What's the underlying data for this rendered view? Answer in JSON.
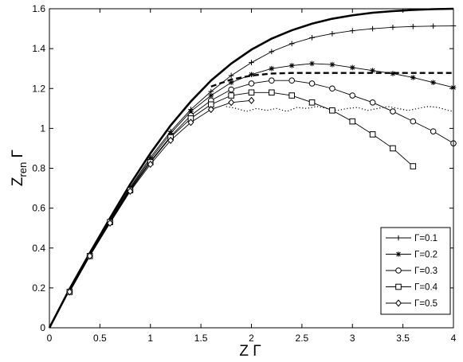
{
  "chart_data": {
    "type": "line",
    "title": "",
    "xlabel": "Z Γ",
    "ylabel": {
      "main": "Z",
      "sub": "ren",
      "suffix": " Γ"
    },
    "xlim": [
      0,
      4
    ],
    "ylim": [
      0,
      1.6
    ],
    "x_ticks": [
      "0",
      "0.5",
      "1",
      "1.5",
      "2",
      "2.5",
      "3",
      "3.5",
      "4"
    ],
    "y_ticks": [
      "0",
      "0.2",
      "0.4",
      "0.6",
      "0.8",
      "1",
      "1.2",
      "1.4",
      "1.6"
    ],
    "grid": false,
    "legend_position": "bottom-right",
    "series": [
      {
        "name": "Γ=0.1",
        "marker": "plus",
        "x": [
          0.2,
          0.4,
          0.6,
          0.8,
          1.0,
          1.2,
          1.4,
          1.6,
          1.8,
          2.0,
          2.2,
          2.4,
          2.6,
          2.8,
          3.0,
          3.2,
          3.4,
          3.6,
          3.8,
          4.0
        ],
        "values": [
          0.185,
          0.365,
          0.54,
          0.705,
          0.855,
          0.985,
          1.095,
          1.185,
          1.265,
          1.33,
          1.385,
          1.425,
          1.455,
          1.475,
          1.49,
          1.5,
          1.507,
          1.511,
          1.513,
          1.514
        ]
      },
      {
        "name": "Γ=0.2",
        "marker": "star",
        "x": [
          0.2,
          0.4,
          0.6,
          0.8,
          1.0,
          1.2,
          1.4,
          1.6,
          1.8,
          2.0,
          2.2,
          2.4,
          2.6,
          2.8,
          3.0,
          3.2,
          3.4,
          3.6,
          3.8,
          4.0
        ],
        "values": [
          0.185,
          0.365,
          0.535,
          0.7,
          0.845,
          0.975,
          1.085,
          1.165,
          1.23,
          1.27,
          1.3,
          1.315,
          1.325,
          1.32,
          1.305,
          1.29,
          1.275,
          1.255,
          1.23,
          1.205
        ]
      },
      {
        "name": "Γ=0.3",
        "marker": "circle",
        "x": [
          0.2,
          0.4,
          0.6,
          0.8,
          1.0,
          1.2,
          1.4,
          1.6,
          1.8,
          2.0,
          2.2,
          2.4,
          2.6,
          2.8,
          3.0,
          3.2,
          3.4,
          3.6,
          3.8,
          4.0
        ],
        "values": [
          0.18,
          0.36,
          0.53,
          0.695,
          0.835,
          0.96,
          1.065,
          1.14,
          1.195,
          1.225,
          1.24,
          1.24,
          1.225,
          1.2,
          1.165,
          1.13,
          1.085,
          1.035,
          0.985,
          0.925
        ]
      },
      {
        "name": "Γ=0.4",
        "marker": "square",
        "x": [
          0.2,
          0.4,
          0.6,
          0.8,
          1.0,
          1.2,
          1.4,
          1.6,
          1.8,
          2.0,
          2.2,
          2.4,
          2.6,
          2.8,
          3.0,
          3.2,
          3.4,
          3.6
        ],
        "values": [
          0.18,
          0.36,
          0.53,
          0.69,
          0.83,
          0.955,
          1.05,
          1.12,
          1.165,
          1.18,
          1.18,
          1.165,
          1.13,
          1.09,
          1.035,
          0.97,
          0.9,
          0.81
        ]
      },
      {
        "name": "Γ=0.5",
        "marker": "diamond",
        "x": [
          0.2,
          0.4,
          0.6,
          0.8,
          1.0,
          1.2,
          1.4,
          1.6,
          1.8,
          2.0
        ],
        "values": [
          0.18,
          0.36,
          0.525,
          0.685,
          0.82,
          0.94,
          1.03,
          1.095,
          1.13,
          1.14
        ]
      }
    ],
    "reference_curves": [
      {
        "style": "thick-solid",
        "x": [
          0,
          0.2,
          0.4,
          0.6,
          0.8,
          1.0,
          1.2,
          1.4,
          1.6,
          1.8,
          2.0,
          2.2,
          2.4,
          2.6,
          2.8,
          3.0,
          3.2,
          3.4,
          3.6,
          3.8,
          4.0
        ],
        "values": [
          0,
          0.195,
          0.375,
          0.55,
          0.72,
          0.875,
          1.015,
          1.135,
          1.24,
          1.325,
          1.395,
          1.45,
          1.492,
          1.525,
          1.55,
          1.567,
          1.58,
          1.588,
          1.594,
          1.598,
          1.6
        ]
      },
      {
        "style": "dashed",
        "x": [
          1.6,
          1.8,
          2.0,
          2.2,
          2.4,
          2.6,
          2.8,
          3.0,
          3.2,
          3.4,
          3.6,
          3.8,
          4.0
        ],
        "values": [
          1.21,
          1.245,
          1.265,
          1.275,
          1.278,
          1.278,
          1.278,
          1.278,
          1.278,
          1.278,
          1.278,
          1.278,
          1.278
        ]
      },
      {
        "style": "dotted",
        "x": [
          1.75,
          1.85,
          1.95,
          2.05,
          2.15,
          2.25,
          2.35,
          2.45,
          2.55,
          2.65,
          2.75,
          2.85,
          2.95,
          3.05,
          3.15,
          3.25,
          3.35,
          3.45,
          3.55,
          3.65,
          3.75,
          3.85,
          3.95,
          4.0
        ],
        "values": [
          1.11,
          1.1,
          1.085,
          1.1,
          1.09,
          1.1,
          1.085,
          1.105,
          1.1,
          1.11,
          1.1,
          1.09,
          1.1,
          1.105,
          1.09,
          1.1,
          1.11,
          1.1,
          1.09,
          1.1,
          1.11,
          1.105,
          1.09,
          1.085
        ]
      }
    ]
  }
}
